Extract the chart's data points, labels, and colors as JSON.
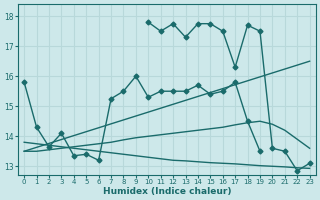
{
  "xlabel": "Humidex (Indice chaleur)",
  "ylabel": "",
  "xlim": [
    -0.5,
    23.5
  ],
  "ylim": [
    12.7,
    18.4
  ],
  "xticks": [
    0,
    1,
    2,
    3,
    4,
    5,
    6,
    7,
    8,
    9,
    10,
    11,
    12,
    13,
    14,
    15,
    16,
    17,
    18,
    19,
    20,
    21,
    22,
    23
  ],
  "yticks": [
    13,
    14,
    15,
    16,
    17,
    18
  ],
  "bg_color": "#cde8ea",
  "line_color": "#1a6b6b",
  "grid_color": "#b8d8da",
  "series": [
    {
      "x": [
        10,
        11,
        12,
        13,
        14,
        15,
        16,
        17,
        18,
        19,
        20,
        21,
        22,
        23
      ],
      "y": [
        17.8,
        17.5,
        17.75,
        17.3,
        17.75,
        17.75,
        17.5,
        16.3,
        17.7,
        17.5,
        13.6,
        13.5,
        12.85,
        13.1
      ],
      "marker": "D",
      "markersize": 2.5,
      "linewidth": 1.0
    },
    {
      "x": [
        0,
        23
      ],
      "y": [
        13.5,
        16.5
      ],
      "marker": null,
      "linewidth": 1.0
    },
    {
      "x": [
        0,
        1,
        2,
        3,
        4,
        5,
        6,
        7,
        8,
        9,
        10,
        11,
        12,
        13,
        14,
        15,
        16,
        17,
        18,
        19,
        20,
        21,
        22,
        23
      ],
      "y": [
        13.5,
        13.5,
        13.55,
        13.6,
        13.65,
        13.7,
        13.75,
        13.8,
        13.88,
        13.95,
        14.0,
        14.05,
        14.1,
        14.15,
        14.2,
        14.25,
        14.3,
        14.38,
        14.45,
        14.5,
        14.4,
        14.2,
        13.9,
        13.6
      ],
      "marker": null,
      "linewidth": 1.0
    },
    {
      "x": [
        0,
        1,
        2,
        3,
        4,
        5,
        6,
        7,
        8,
        9,
        10,
        11,
        12,
        13,
        14,
        15,
        16,
        17,
        18,
        19
      ],
      "y": [
        15.8,
        14.3,
        13.65,
        14.1,
        13.35,
        13.4,
        13.2,
        15.25,
        15.5,
        16.0,
        15.3,
        15.5,
        15.5,
        15.5,
        15.7,
        15.4,
        15.5,
        15.8,
        14.5,
        13.5
      ],
      "marker": "D",
      "markersize": 2.5,
      "linewidth": 1.0
    },
    {
      "x": [
        0,
        1,
        2,
        3,
        4,
        5,
        6,
        7,
        8,
        9,
        10,
        11,
        12,
        13,
        14,
        15,
        16,
        17,
        18,
        19,
        20,
        21,
        22,
        23
      ],
      "y": [
        13.8,
        13.75,
        13.7,
        13.65,
        13.6,
        13.55,
        13.5,
        13.45,
        13.4,
        13.35,
        13.3,
        13.25,
        13.2,
        13.18,
        13.15,
        13.12,
        13.1,
        13.08,
        13.05,
        13.02,
        13.0,
        12.98,
        12.95,
        12.93
      ],
      "marker": null,
      "linewidth": 1.0
    }
  ]
}
